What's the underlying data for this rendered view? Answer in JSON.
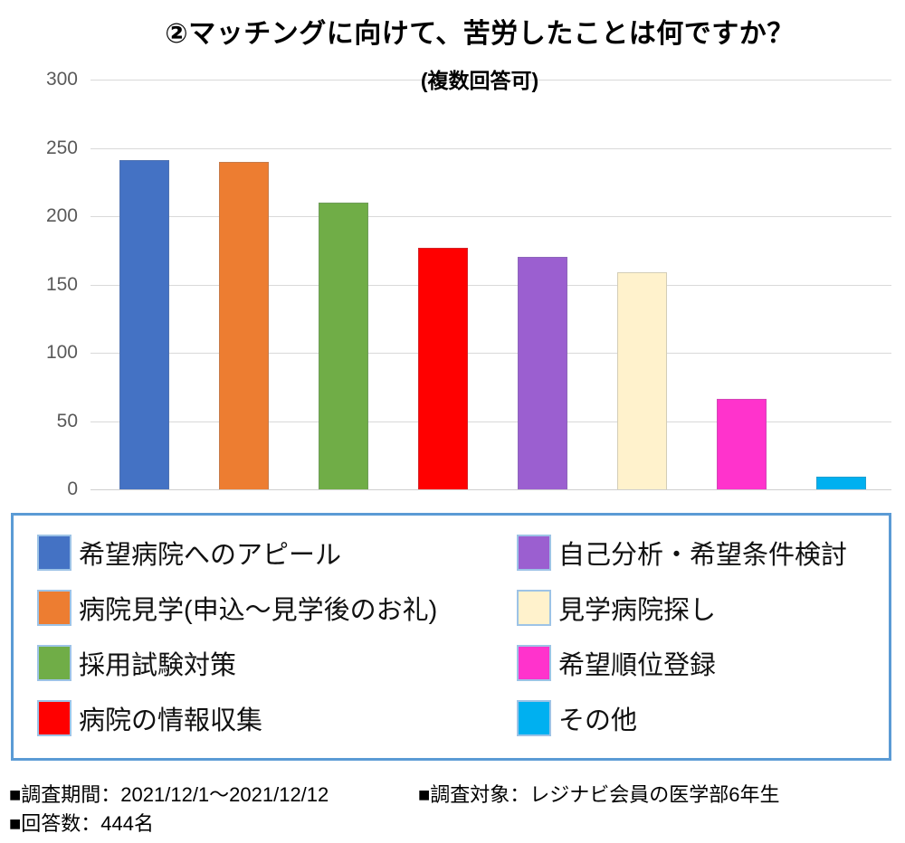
{
  "title": "②マッチングに向けて、苦労したことは何ですか？",
  "subtitle": "(複数回答可)",
  "notes": {
    "period": "■調査期間：2021/12/1～2021/12/12",
    "target": "■調査対象：レジナビ会員の医学部6年生",
    "respondents": "■回答数：444名"
  },
  "chart_data": {
    "type": "bar",
    "title": "②マッチングに向けて、苦労したことは何ですか？",
    "subtitle": "(複数回答可)",
    "categories": [
      "希望病院へのアピール",
      "病院見学(申込～見学後のお礼)",
      "採用試験対策",
      "病院の情報収集",
      "自己分析・希望条件検討",
      "見学病院探し",
      "希望順位登録",
      "その他"
    ],
    "values": [
      241,
      240,
      210,
      177,
      170,
      159,
      66,
      9
    ],
    "colors": [
      "#4472C4",
      "#ED7D31",
      "#70AD47",
      "#FF0000",
      "#9B5FD0",
      "#FFF2CC",
      "#FF33CC",
      "#00B0F0"
    ],
    "xlabel": "",
    "ylabel": "",
    "ylim": [
      0,
      300
    ],
    "yticks": [
      0,
      50,
      100,
      150,
      200,
      250,
      300
    ],
    "grid": true,
    "axis_label_color": "#595959",
    "gridline_color": "#D9D9D9",
    "legend_position": "bottom-box-2col",
    "legend_border_color": "#5B9BD5"
  }
}
